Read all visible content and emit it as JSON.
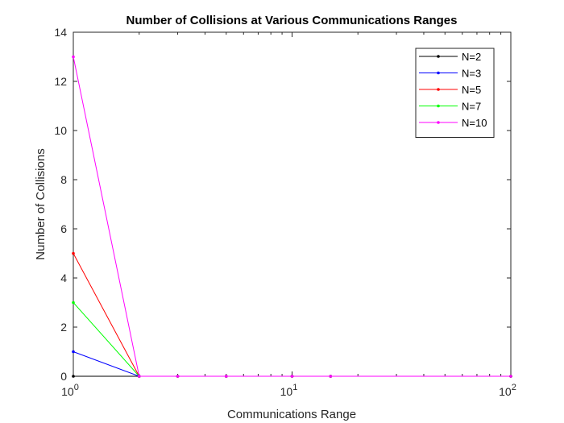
{
  "chart_data": {
    "type": "line",
    "title": "Number of Collisions at Various Communications Ranges",
    "xlabel": "Communications Range",
    "ylabel": "Number of Collisions",
    "xscale": "log",
    "xlim": [
      1,
      100
    ],
    "ylim": [
      0,
      14
    ],
    "x_ticks": [
      {
        "value": 1,
        "base": "10",
        "exp": "0"
      },
      {
        "value": 10,
        "base": "10",
        "exp": "1"
      },
      {
        "value": 100,
        "base": "10",
        "exp": "2"
      }
    ],
    "y_ticks": [
      "0",
      "2",
      "4",
      "6",
      "8",
      "10",
      "12",
      "14"
    ],
    "x": [
      1,
      2,
      3,
      5,
      10,
      15,
      100
    ],
    "series": [
      {
        "name": "N=2",
        "color": "#000000",
        "values": [
          0,
          0,
          0,
          0,
          0,
          0,
          0
        ]
      },
      {
        "name": "N=3",
        "color": "#0000ff",
        "values": [
          1,
          0,
          0,
          0,
          0,
          0,
          0
        ]
      },
      {
        "name": "N=5",
        "color": "#ff0000",
        "values": [
          5,
          0,
          0,
          0,
          0,
          0,
          0
        ]
      },
      {
        "name": "N=7",
        "color": "#00ff00",
        "values": [
          3,
          0,
          0,
          0,
          0,
          0,
          0
        ]
      },
      {
        "name": "N=10",
        "color": "#ff00ff",
        "values": [
          13,
          0,
          0,
          0,
          0,
          0,
          0
        ]
      }
    ],
    "grid": false,
    "legend_position": "top-right"
  }
}
